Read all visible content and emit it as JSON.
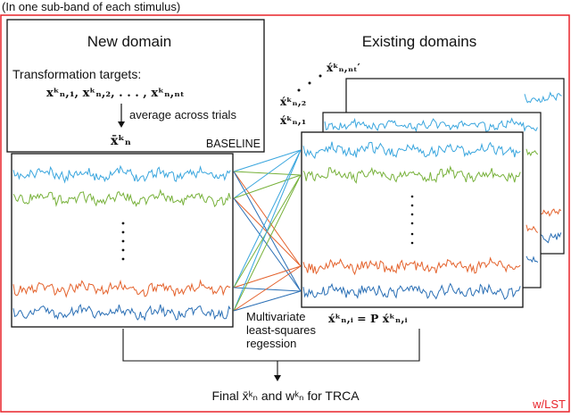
{
  "header_note": "(In one sub-band of each stimulus)",
  "corner_tag": "w/LST",
  "new_domain": {
    "title": "New domain",
    "targets_label": "Transformation targets:",
    "targets_expr": "xᵏₙ,₁,  xᵏₙ,₂, . . . ,  xᵏₙ,ₙₜ",
    "average_label": "average across trials",
    "mean_expr": "x̄ᵏₙ",
    "baseline_label": "BASELINE"
  },
  "existing": {
    "title": "Existing domains",
    "trial_labels": [
      "x́ᵏₙ,₁",
      "x́ᵏₙ,₂",
      "x́ᵏₙ,ₙₜ′"
    ],
    "projection_expr": "x́ᵏₙ,ᵢ = P x́ᵏₙ,ᵢ"
  },
  "regression_label": [
    "Multivariate",
    "least-squares",
    "regession"
  ],
  "final_label": "Final x̄ᵏₙ and wᵏₙ for TRCA",
  "colors": {
    "frame": "#e8232a",
    "blue_light": "#3aa6de",
    "green": "#77b13a",
    "orange": "#e4622c",
    "blue_dark": "#2a6fb5",
    "black": "#111111"
  }
}
